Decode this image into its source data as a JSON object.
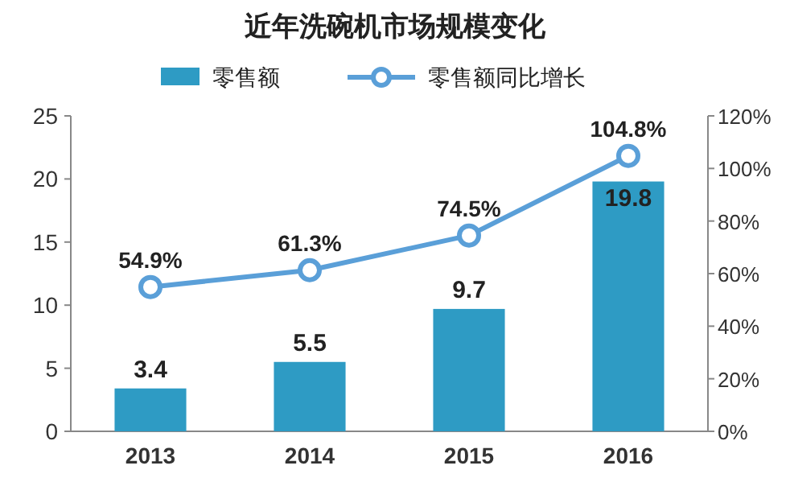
{
  "chart_data": {
    "type": "bar",
    "title": "近年洗碗机市场规模变化",
    "categories": [
      "2013",
      "2014",
      "2015",
      "2016"
    ],
    "series": [
      {
        "name": "零售额",
        "color": "#2e9bc4",
        "values": [
          3.4,
          5.5,
          9.7,
          19.8
        ],
        "value_labels": [
          "3.4",
          "5.5",
          "9.7",
          "19.8"
        ]
      },
      {
        "name": "零售额同比增长",
        "type": "line",
        "axis": "y2",
        "color": "#5a9fd8",
        "marker": "circle",
        "values": [
          54.9,
          61.3,
          74.5,
          104.8
        ],
        "value_labels": [
          "54.9%",
          "61.3%",
          "74.5%",
          "104.8%"
        ]
      }
    ],
    "ylim": [
      0,
      25
    ],
    "yticks": [
      0,
      5,
      10,
      15,
      20,
      25
    ],
    "y2lim": [
      0,
      120
    ],
    "y2ticks": [
      {
        "value": 0,
        "label": "0%"
      },
      {
        "value": 20,
        "label": "20%"
      },
      {
        "value": 40,
        "label": "40%"
      },
      {
        "value": 60,
        "label": "60%"
      },
      {
        "value": 80,
        "label": "80%"
      },
      {
        "value": 100,
        "label": "100%"
      },
      {
        "value": 120,
        "label": "120%"
      }
    ],
    "legend": "top",
    "grid": false
  }
}
